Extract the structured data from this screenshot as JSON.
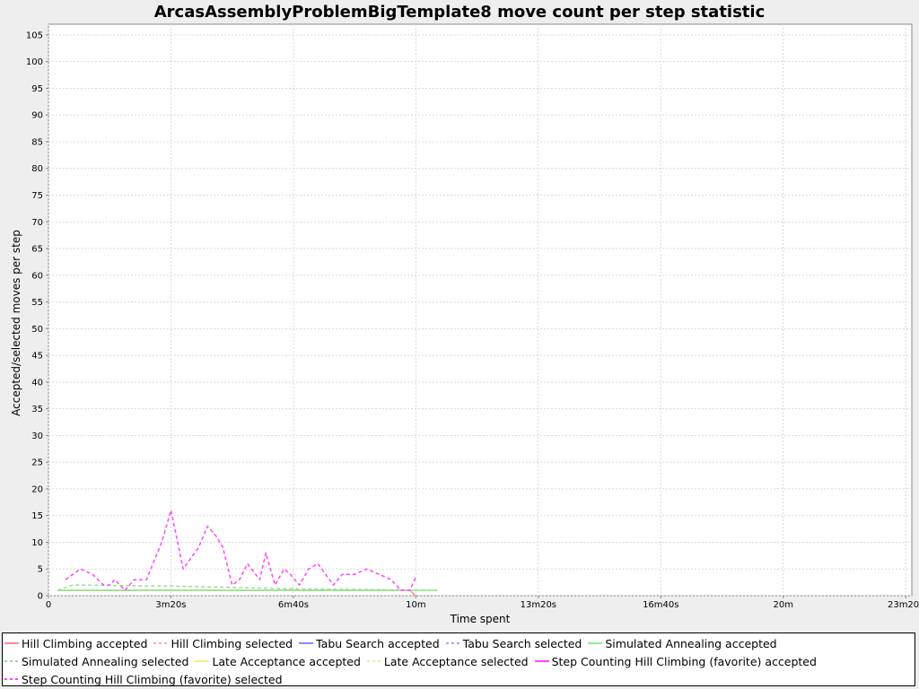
{
  "chart_data": {
    "type": "line",
    "title": "ArcasAssemblyProblemBigTemplate8 move count per step statistic",
    "xlabel": "Time spent",
    "ylabel": "Accepted/selected moves per step",
    "x_unit": "seconds",
    "xlim": [
      0,
      1410
    ],
    "ylim": [
      0,
      107
    ],
    "x_ticks": [
      {
        "value": 0,
        "label": "0"
      },
      {
        "value": 200,
        "label": "3m20s"
      },
      {
        "value": 400,
        "label": "6m40s"
      },
      {
        "value": 600,
        "label": "10m"
      },
      {
        "value": 800,
        "label": "13m20s"
      },
      {
        "value": 1000,
        "label": "16m40s"
      },
      {
        "value": 1200,
        "label": "20m"
      },
      {
        "value": 1400,
        "label": "23m20s"
      }
    ],
    "y_ticks": [
      0,
      5,
      10,
      15,
      20,
      25,
      30,
      35,
      40,
      45,
      50,
      55,
      60,
      65,
      70,
      75,
      80,
      85,
      90,
      95,
      100,
      105
    ],
    "grid": true,
    "legend_position": "bottom",
    "series": [
      {
        "name": "Hill Climbing accepted",
        "color": "#ff8888",
        "dash": "solid",
        "x": [
          15,
          590,
          600
        ],
        "y": [
          1,
          1,
          0
        ]
      },
      {
        "name": "Hill Climbing selected",
        "color": "#ffaaaa",
        "dash": "dashed",
        "x": [
          15,
          590,
          600
        ],
        "y": [
          1,
          1,
          0
        ]
      },
      {
        "name": "Tabu Search accepted",
        "color": "#8888ff",
        "dash": "solid",
        "x": [],
        "y": []
      },
      {
        "name": "Tabu Search selected",
        "color": "#aaaaff",
        "dash": "dashed",
        "x": [],
        "y": []
      },
      {
        "name": "Simulated Annealing accepted",
        "color": "#88ee88",
        "dash": "solid",
        "x": [
          15,
          635
        ],
        "y": [
          1,
          1
        ]
      },
      {
        "name": "Simulated Annealing selected",
        "color": "#99dd99",
        "dash": "dashed",
        "x": [
          15,
          40,
          200,
          400,
          635
        ],
        "y": [
          1,
          2,
          1.8,
          1.3,
          1
        ]
      },
      {
        "name": "Late Acceptance accepted",
        "color": "#eeee88",
        "dash": "solid",
        "x": [],
        "y": []
      },
      {
        "name": "Late Acceptance selected",
        "color": "#eeeeaa",
        "dash": "dashed",
        "x": [],
        "y": []
      },
      {
        "name": "Step Counting Hill Climbing (favorite) accepted",
        "color": "#ff44ff",
        "dash": "solid",
        "x": [],
        "y": []
      },
      {
        "name": "Step Counting Hill Climbing (favorite) selected",
        "color": "#ff44ff",
        "dash": "dashed",
        "x": [
          28,
          52,
          72,
          90,
          100,
          108,
          125,
          140,
          160,
          185,
          200,
          220,
          245,
          260,
          275,
          285,
          300,
          312,
          325,
          345,
          355,
          370,
          385,
          395,
          410,
          425,
          440,
          465,
          480,
          500,
          520,
          540,
          560,
          575,
          590,
          600
        ],
        "y": [
          3,
          5,
          4,
          2,
          2,
          3,
          1,
          3,
          3,
          10,
          16,
          5,
          9,
          13,
          11,
          9,
          2,
          3,
          6,
          3,
          8,
          2,
          5,
          4,
          2,
          5,
          6,
          2,
          4,
          4,
          5,
          4,
          3,
          1,
          1,
          3.5
        ]
      }
    ]
  }
}
